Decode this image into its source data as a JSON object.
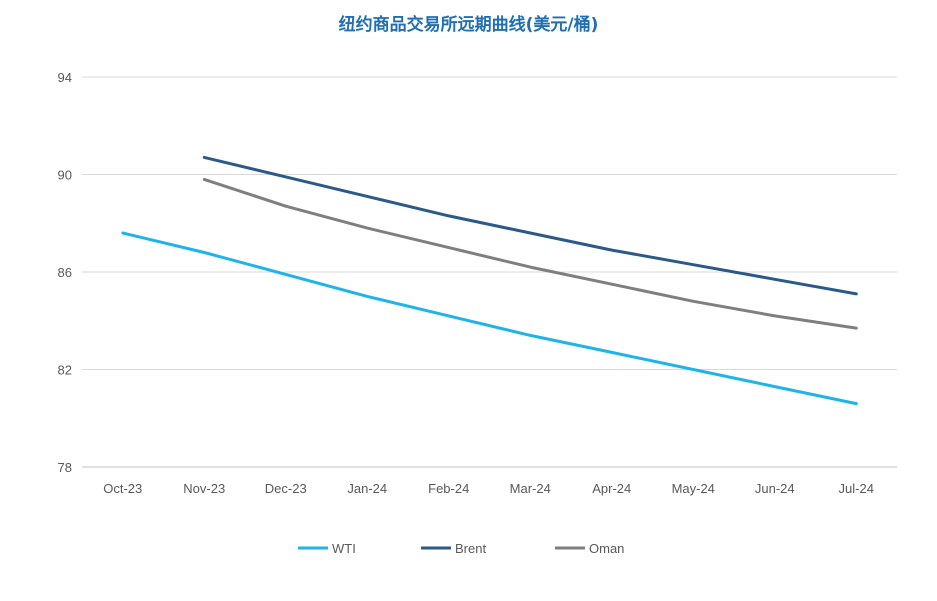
{
  "chart_data": {
    "type": "line",
    "title": "纽约商品交易所远期曲线(美元/桶)",
    "xlabel": "",
    "ylabel": "",
    "categories": [
      "Oct-23",
      "Nov-23",
      "Dec-23",
      "Jan-24",
      "Feb-24",
      "Mar-24",
      "Apr-24",
      "May-24",
      "Jun-24",
      "Jul-24"
    ],
    "yticks": [
      "78",
      "82",
      "86",
      "90",
      "94"
    ],
    "ylim": [
      78,
      94
    ],
    "grid": true,
    "legend_position": "bottom",
    "series": [
      {
        "name": "WTI",
        "color": "#1eb4ea",
        "values": [
          87.6,
          86.8,
          85.9,
          85.0,
          84.2,
          83.4,
          82.7,
          82.0,
          81.3,
          80.6
        ]
      },
      {
        "name": "Brent",
        "color": "#2b5a8a",
        "values": [
          null,
          90.7,
          89.9,
          89.1,
          88.3,
          87.6,
          86.9,
          86.3,
          85.7,
          85.1
        ]
      },
      {
        "name": "Oman",
        "color": "#7f7f7f",
        "values": [
          null,
          89.8,
          88.7,
          87.8,
          87.0,
          86.2,
          85.5,
          84.8,
          84.2,
          83.7
        ]
      }
    ]
  }
}
